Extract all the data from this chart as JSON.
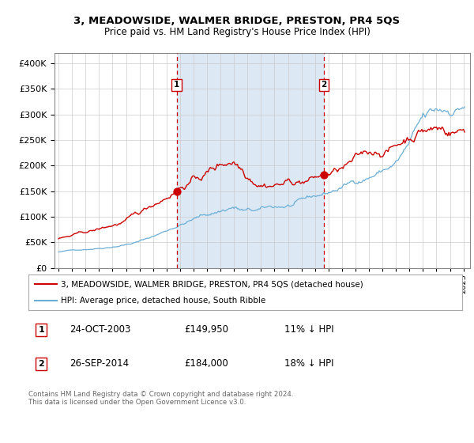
{
  "title1": "3, MEADOWSIDE, WALMER BRIDGE, PRESTON, PR4 5QS",
  "title2": "Price paid vs. HM Land Registry's House Price Index (HPI)",
  "legend1": "3, MEADOWSIDE, WALMER BRIDGE, PRESTON, PR4 5QS (detached house)",
  "legend2": "HPI: Average price, detached house, South Ribble",
  "transaction1_date": "24-OCT-2003",
  "transaction1_price": 149950,
  "transaction1_label": "£149,950",
  "transaction1_pct": "11% ↓ HPI",
  "transaction2_date": "26-SEP-2014",
  "transaction2_price": 184000,
  "transaction2_label": "£184,000",
  "transaction2_pct": "18% ↓ HPI",
  "footer": "Contains HM Land Registry data © Crown copyright and database right 2024.\nThis data is licensed under the Open Government Licence v3.0.",
  "hpi_color": "#6baed6",
  "property_color": "#cc0000",
  "dot_color": "#cc0000",
  "bg_color": "#dce9f5",
  "grid_color": "#cccccc",
  "ylim_min": 0,
  "ylim_max": 420000,
  "xmin": 1994.7,
  "xmax": 2025.5
}
